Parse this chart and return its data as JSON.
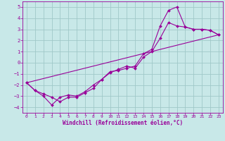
{
  "xlabel": "Windchill (Refroidissement éolien,°C)",
  "bg_color": "#c8e8e8",
  "grid_color": "#a0c8c8",
  "line_color": "#990099",
  "xlim": [
    -0.5,
    23.5
  ],
  "ylim": [
    -4.5,
    5.5
  ],
  "xticks": [
    0,
    1,
    2,
    3,
    4,
    5,
    6,
    7,
    8,
    9,
    10,
    11,
    12,
    13,
    14,
    15,
    16,
    17,
    18,
    19,
    20,
    21,
    22,
    23
  ],
  "yticks": [
    -4,
    -3,
    -2,
    -1,
    0,
    1,
    2,
    3,
    4,
    5
  ],
  "series1_x": [
    0,
    1,
    2,
    3,
    4,
    5,
    6,
    7,
    8,
    9,
    10,
    11,
    12,
    13,
    14,
    15,
    16,
    17,
    18,
    19,
    20,
    21,
    22,
    23
  ],
  "series1_y": [
    -1.8,
    -2.5,
    -2.8,
    -3.1,
    -3.5,
    -3.1,
    -3.1,
    -2.7,
    -2.3,
    -1.5,
    -0.8,
    -0.7,
    -0.5,
    -0.3,
    0.8,
    1.2,
    3.3,
    4.7,
    5.0,
    3.2,
    3.0,
    3.0,
    2.9,
    2.5
  ],
  "series2_x": [
    0,
    1,
    2,
    3,
    4,
    5,
    6,
    7,
    8,
    9,
    10,
    11,
    12,
    13,
    14,
    15,
    16,
    17,
    18,
    19,
    20,
    21,
    22,
    23
  ],
  "series2_y": [
    -1.8,
    -2.5,
    -3.0,
    -3.8,
    -3.1,
    -2.9,
    -3.0,
    -2.6,
    -2.0,
    -1.5,
    -0.9,
    -0.6,
    -0.3,
    -0.5,
    0.5,
    1.0,
    2.2,
    3.6,
    3.3,
    3.2,
    3.0,
    3.0,
    2.9,
    2.5
  ],
  "series3_x": [
    0,
    23
  ],
  "series3_y": [
    -1.8,
    2.5
  ],
  "xlabel_fontsize": 5.5,
  "tick_fontsize": 4.5,
  "marker_size": 2.0,
  "line_width": 0.8
}
